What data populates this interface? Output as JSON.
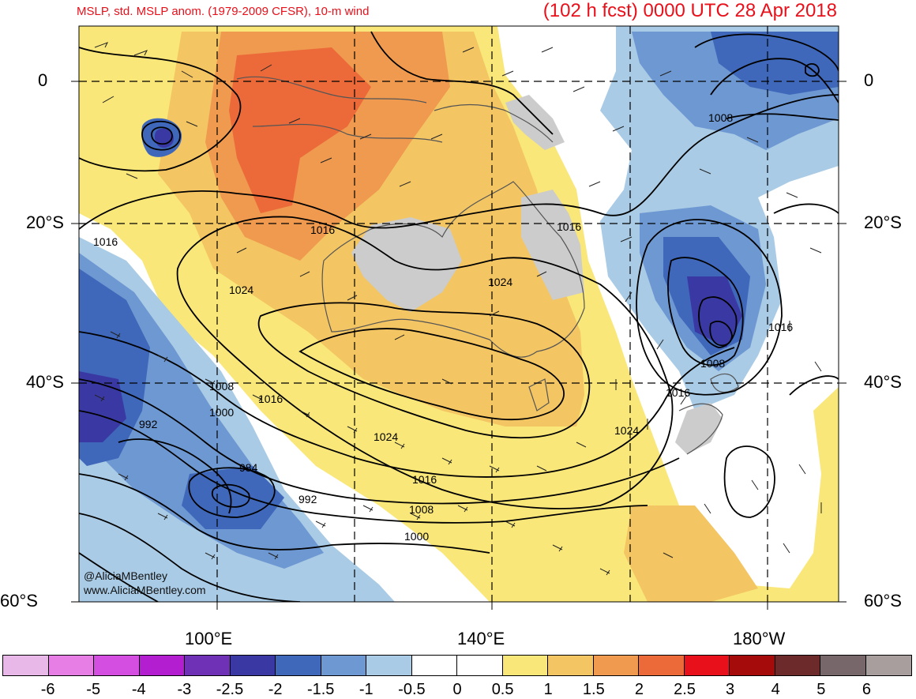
{
  "header": {
    "title_left": "MSLP, std. MSLP anom. (1979-2009 CFSR), 10-m wind",
    "title_right": "(102 h fcst) 0000 UTC 28 Apr 2018"
  },
  "map": {
    "lat_labels": [
      "0",
      "20°S",
      "40°S",
      "60°S"
    ],
    "lon_labels": [
      "100°E",
      "140°E",
      "180°W"
    ],
    "isobar_labels": [
      "1008",
      "1016",
      "1016",
      "1024",
      "1016",
      "1024",
      "1016",
      "1008",
      "1016",
      "1008",
      "1016",
      "1000",
      "992",
      "1024",
      "1024",
      "984",
      "992",
      "1016",
      "1008",
      "1000"
    ],
    "credit_handle": "@AliciaMBentley",
    "credit_site": "www.AliciaMBentley.com",
    "colors": {
      "anom_pos_0_5": "#f9e779",
      "anom_pos_1": "#f3c563",
      "anom_pos_1_5": "#ef9a4f",
      "anom_pos_2": "#ec6a3a",
      "anom_neg_0_5": "#a9cbe6",
      "anom_neg_1": "#6e98d2",
      "anom_neg_1_5": "#3f68bb",
      "anom_neg_2": "#3a39a4",
      "land": "#cccccc"
    }
  },
  "colorbar": {
    "labels": [
      "-6",
      "-5",
      "-4",
      "-3",
      "-2.5",
      "-2",
      "-1.5",
      "-1",
      "-0.5",
      "0",
      "0.5",
      "1",
      "1.5",
      "2",
      "2.5",
      "3",
      "4",
      "5",
      "6"
    ],
    "colors": [
      "#e8b8e8",
      "#e67ee6",
      "#d54ee2",
      "#b31ed0",
      "#6f31b6",
      "#3a39a4",
      "#3f68bb",
      "#6e98d2",
      "#a9cbe6",
      "#ffffff",
      "#ffffff",
      "#f9e779",
      "#f3c563",
      "#ef9a4f",
      "#ec6a3a",
      "#e8101a",
      "#a60b0b",
      "#6c2a2a",
      "#77676a",
      "#a89e9e"
    ]
  }
}
